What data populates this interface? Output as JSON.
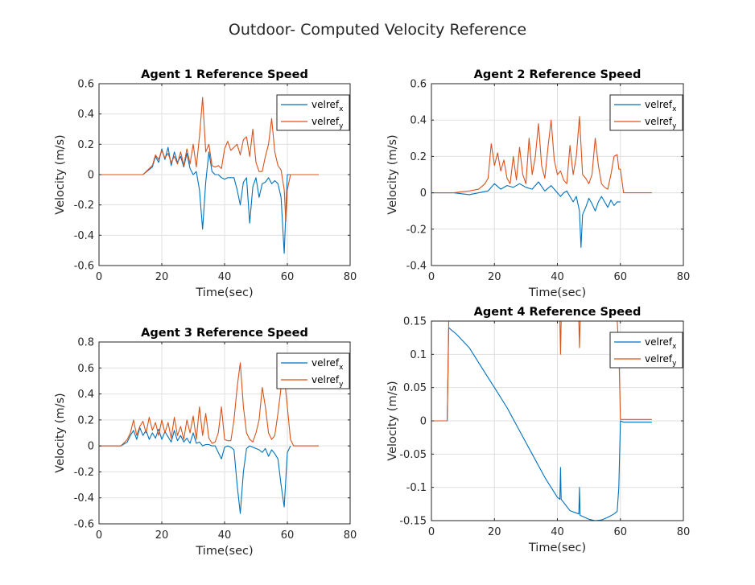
{
  "figure_title": "Outdoor- Computed Velocity Reference",
  "colors": {
    "x": "#0072BD",
    "y": "#D95319"
  },
  "chart_data": [
    {
      "type": "line",
      "title": "Agent 1 Reference Speed",
      "xlabel": "Time(sec)",
      "ylabel": "Velocity (m/s)",
      "xlim": [
        0,
        80
      ],
      "ylim": [
        -0.6,
        0.6
      ],
      "xticks": [
        0,
        20,
        40,
        60,
        80
      ],
      "yticks": [
        -0.6,
        -0.4,
        -0.2,
        0,
        0.2,
        0.4,
        0.6
      ],
      "xtick_labels": [
        "0",
        "20",
        "40",
        "60",
        "80"
      ],
      "ytick_labels": [
        "-0.6",
        "-0.4",
        "-0.2",
        "0",
        "0.2",
        "0.4",
        "0.6"
      ],
      "grid": true,
      "legend": "top-right",
      "series": [
        {
          "name": "velref",
          "sub": "x",
          "color": "#0072BD",
          "x": [
            0,
            14,
            17,
            18,
            19,
            20,
            21,
            22,
            23,
            24,
            25,
            26,
            27,
            28,
            29,
            30,
            31,
            32,
            33,
            34,
            35,
            36,
            37,
            38,
            39,
            40,
            41,
            42,
            43,
            44,
            45,
            46,
            47,
            48,
            49,
            50,
            51,
            52,
            53,
            54,
            55,
            56,
            57,
            58,
            59,
            59.5,
            60,
            61
          ],
          "y": [
            0,
            0,
            0.05,
            0.12,
            0.08,
            0.17,
            0.1,
            0.18,
            0.06,
            0.15,
            0.08,
            0.12,
            0.05,
            0.14,
            0.04,
            0.0,
            0.02,
            -0.1,
            -0.36,
            -0.05,
            0.15,
            0.02,
            0.0,
            0.0,
            -0.02,
            -0.03,
            -0.02,
            -0.02,
            -0.02,
            -0.1,
            -0.2,
            -0.05,
            -0.02,
            -0.32,
            -0.08,
            -0.02,
            -0.15,
            -0.06,
            -0.05,
            -0.02,
            -0.06,
            -0.04,
            -0.06,
            -0.15,
            -0.52,
            -0.25,
            0,
            0
          ]
        },
        {
          "name": "velref",
          "sub": "y",
          "color": "#D95319",
          "x": [
            0,
            14,
            17,
            18,
            19,
            20,
            21,
            22,
            23,
            24,
            25,
            26,
            27,
            28,
            29,
            30,
            31,
            32,
            33,
            34,
            35,
            36,
            37,
            38,
            39,
            40,
            41,
            42,
            43,
            44,
            45,
            46,
            47,
            48,
            49,
            50,
            51,
            52,
            53,
            54,
            55,
            56,
            57,
            58,
            59,
            59.5,
            60,
            61,
            70
          ],
          "y": [
            0,
            0,
            0.06,
            0.13,
            0.1,
            0.16,
            0.11,
            0.14,
            0.08,
            0.12,
            0.07,
            0.15,
            0.06,
            0.17,
            0.07,
            0.2,
            0.05,
            0.25,
            0.51,
            0.15,
            0.2,
            0.06,
            0.05,
            0.06,
            0.04,
            0.17,
            0.22,
            0.16,
            0.18,
            0.2,
            0.13,
            0.23,
            0.25,
            0.12,
            0.3,
            0.08,
            0.02,
            0.02,
            0.12,
            0.2,
            0.37,
            0.15,
            0.06,
            0.03,
            -0.1,
            -0.31,
            -0.1,
            0,
            0
          ]
        }
      ]
    },
    {
      "type": "line",
      "title": "Agent 2 Reference Speed",
      "xlabel": "Time(sec)",
      "ylabel": "Velocity (m/s)",
      "xlim": [
        0,
        80
      ],
      "ylim": [
        -0.4,
        0.6
      ],
      "xticks": [
        0,
        20,
        40,
        60,
        80
      ],
      "yticks": [
        -0.4,
        -0.2,
        0,
        0.2,
        0.4,
        0.6
      ],
      "xtick_labels": [
        "0",
        "20",
        "40",
        "60",
        "80"
      ],
      "ytick_labels": [
        "-0.4",
        "-0.2",
        "0",
        "0.2",
        "0.4",
        "0.6"
      ],
      "grid": true,
      "legend": "top-right",
      "series": [
        {
          "name": "velref",
          "sub": "x",
          "color": "#0072BD",
          "x": [
            0,
            7,
            12,
            15,
            18,
            20,
            22,
            24,
            26,
            28,
            30,
            32,
            34,
            36,
            38,
            40,
            41,
            42,
            43,
            44,
            45,
            46,
            47,
            47.5,
            48,
            49,
            50,
            51,
            52,
            53,
            54,
            55,
            56,
            57,
            58,
            59,
            60
          ],
          "y": [
            0,
            0,
            -0.01,
            0,
            0.01,
            0.05,
            0.02,
            0.04,
            0.03,
            0.05,
            0.03,
            0.02,
            0.06,
            0.01,
            0.04,
            0.0,
            -0.02,
            0,
            0.01,
            -0.02,
            -0.05,
            -0.02,
            -0.1,
            -0.3,
            -0.12,
            -0.08,
            -0.03,
            -0.06,
            -0.1,
            -0.05,
            -0.02,
            -0.05,
            -0.08,
            -0.04,
            -0.07,
            -0.05,
            -0.05
          ]
        },
        {
          "name": "velref",
          "sub": "y",
          "color": "#D95319",
          "x": [
            0,
            7,
            12,
            15,
            17,
            18,
            19,
            20,
            21,
            22,
            23,
            24,
            25,
            26,
            27,
            28,
            29,
            30,
            31,
            32,
            33,
            34,
            35,
            36,
            37,
            38,
            39,
            40,
            41,
            42,
            43,
            44,
            45,
            46,
            47,
            48,
            49,
            50,
            51,
            52,
            53,
            54,
            55,
            56,
            57,
            58,
            59,
            59.5,
            60,
            61,
            70
          ],
          "y": [
            0,
            0,
            0.01,
            0.02,
            0.05,
            0.08,
            0.27,
            0.15,
            0.22,
            0.12,
            0.18,
            0.08,
            0.05,
            0.2,
            0.07,
            0.25,
            0.1,
            0.05,
            0.3,
            0.1,
            0.2,
            0.38,
            0.15,
            0.08,
            0.25,
            0.4,
            0.18,
            0.1,
            0.12,
            0.07,
            0.05,
            0.26,
            0.1,
            0.2,
            0.42,
            0.1,
            0.08,
            0.05,
            0.1,
            0.3,
            0.15,
            0.05,
            0.03,
            0.02,
            0.1,
            0.2,
            0.21,
            0.13,
            0.13,
            0,
            0
          ]
        }
      ]
    },
    {
      "type": "line",
      "title": "Agent 3 Reference Speed",
      "xlabel": "Time(sec)",
      "ylabel": "Velocity (m/s)",
      "xlim": [
        0,
        80
      ],
      "ylim": [
        -0.6,
        0.8
      ],
      "xticks": [
        0,
        20,
        40,
        60,
        80
      ],
      "yticks": [
        -0.6,
        -0.4,
        -0.2,
        0,
        0.2,
        0.4,
        0.6,
        0.8
      ],
      "xtick_labels": [
        "0",
        "20",
        "40",
        "60",
        "80"
      ],
      "ytick_labels": [
        "-0.6",
        "-0.4",
        "-0.2",
        "0",
        "0.2",
        "0.4",
        "0.6",
        "0.8"
      ],
      "grid": true,
      "legend": "top-right",
      "series": [
        {
          "name": "velref",
          "sub": "x",
          "color": "#0072BD",
          "x": [
            0,
            7,
            9,
            10,
            11,
            12,
            13,
            14,
            15,
            16,
            17,
            18,
            19,
            20,
            21,
            22,
            23,
            24,
            25,
            26,
            27,
            28,
            29,
            30,
            31,
            32,
            33,
            34,
            35,
            36,
            37,
            38,
            39,
            40,
            41,
            42,
            43,
            44,
            45,
            46,
            47,
            48,
            49,
            50,
            51,
            52,
            53,
            54,
            55,
            56,
            57,
            58,
            59,
            60,
            61
          ],
          "y": [
            0,
            0,
            0.03,
            0.08,
            0.12,
            0.05,
            0.14,
            0.08,
            0.12,
            0.05,
            0.1,
            0.06,
            0.13,
            0.05,
            0.11,
            0.07,
            0.03,
            0.12,
            0.04,
            0.08,
            0.03,
            0.06,
            0.02,
            0.1,
            0.02,
            0.03,
            0.0,
            0.01,
            0.01,
            0,
            0,
            -0.05,
            -0.1,
            -0.01,
            0,
            -0.01,
            -0.03,
            -0.3,
            -0.52,
            -0.2,
            -0.02,
            0,
            -0.01,
            -0.02,
            -0.03,
            -0.05,
            -0.02,
            -0.08,
            -0.03,
            -0.06,
            -0.1,
            -0.3,
            -0.47,
            -0.05,
            0
          ]
        },
        {
          "name": "velref",
          "sub": "y",
          "color": "#D95319",
          "x": [
            0,
            7,
            9,
            10,
            11,
            12,
            13,
            14,
            15,
            16,
            17,
            18,
            19,
            20,
            21,
            22,
            23,
            24,
            25,
            26,
            27,
            28,
            29,
            30,
            31,
            32,
            33,
            34,
            35,
            36,
            37,
            38,
            39,
            40,
            41,
            42,
            43,
            44,
            45,
            46,
            47,
            48,
            49,
            50,
            51,
            52,
            53,
            54,
            55,
            56,
            57,
            58,
            59,
            60,
            61,
            62,
            70
          ],
          "y": [
            0,
            0,
            0.05,
            0.1,
            0.2,
            0.08,
            0.15,
            0.19,
            0.1,
            0.22,
            0.12,
            0.18,
            0.08,
            0.2,
            0.1,
            0.18,
            0.06,
            0.22,
            0.08,
            0.15,
            0.05,
            0.2,
            0.1,
            0.23,
            0.05,
            0.3,
            0.08,
            0.25,
            0.06,
            0.02,
            0.03,
            0.1,
            0.3,
            0.05,
            0.04,
            0.04,
            0.2,
            0.45,
            0.64,
            0.3,
            0.1,
            0.05,
            0.03,
            0.1,
            0.2,
            0.45,
            0.3,
            0.1,
            0.05,
            0.08,
            0.25,
            0.45,
            0.54,
            0.3,
            0.05,
            0,
            0
          ]
        }
      ]
    },
    {
      "type": "line",
      "title": "Agent 4 Reference Speed",
      "xlabel": "Time(sec)",
      "ylabel": "Velocity (m/s)",
      "xlim": [
        0,
        80
      ],
      "ylim": [
        -0.15,
        0.15
      ],
      "xticks": [
        0,
        20,
        40,
        60,
        80
      ],
      "yticks": [
        -0.15,
        -0.1,
        -0.05,
        0,
        0.05,
        0.1,
        0.15
      ],
      "xtick_labels": [
        "0",
        "20",
        "40",
        "60",
        "80"
      ],
      "ytick_labels": [
        "-0.15",
        "-0.1",
        "-0.05",
        "0",
        "0.05",
        "0.1",
        "0.15"
      ],
      "grid": true,
      "legend": "top-right",
      "series": [
        {
          "name": "velref",
          "sub": "x",
          "color": "#0072BD",
          "x": [
            0,
            5,
            5.5,
            8,
            12,
            16,
            20,
            24,
            28,
            32,
            36,
            40,
            40.8,
            41,
            41.2,
            44,
            46.8,
            47,
            47.2,
            50,
            52,
            54,
            56,
            58,
            59,
            59.5,
            60,
            61,
            70
          ],
          "y": [
            0,
            0,
            0.14,
            0.13,
            0.11,
            0.08,
            0.05,
            0.02,
            -0.015,
            -0.05,
            -0.085,
            -0.115,
            -0.118,
            -0.07,
            -0.118,
            -0.135,
            -0.14,
            -0.1,
            -0.142,
            -0.148,
            -0.15,
            -0.149,
            -0.145,
            -0.14,
            -0.136,
            -0.1,
            0,
            -0.002,
            -0.002
          ]
        },
        {
          "name": "velref",
          "sub": "y",
          "color": "#D95319",
          "x": [
            0,
            5,
            5.5,
            40.8,
            41,
            41.2,
            46.8,
            47,
            47.2,
            59,
            59.5,
            60,
            61,
            70
          ],
          "y": [
            0,
            0,
            0.15,
            0.15,
            0.1,
            0.15,
            0.15,
            0.11,
            0.15,
            0.15,
            0.11,
            0.002,
            0.002,
            0.002
          ]
        }
      ]
    }
  ]
}
